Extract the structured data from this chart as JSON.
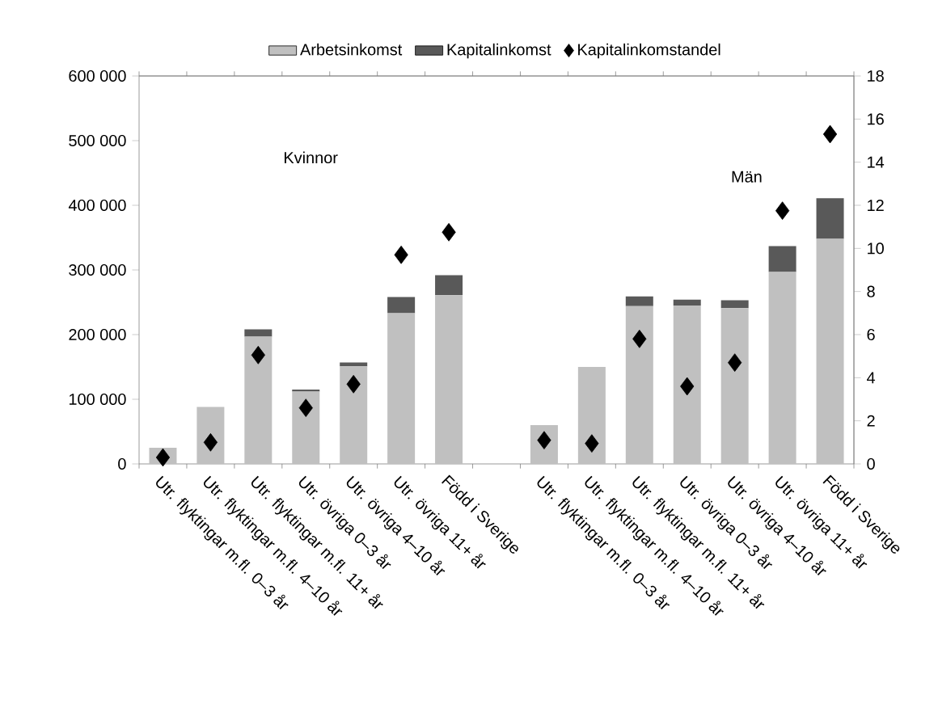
{
  "chart_data": {
    "type": "bar",
    "stacked": true,
    "categories": [
      "Utr. flyktingar m.fl. 0–3 år",
      "Utr. flyktingar m.fl. 4–10 år",
      "Utr. flyktingar m.fl. 11+ år",
      "Utr. övriga 0–3 år",
      "Utr. övriga 4–10 år",
      "Utr. övriga 11+ år",
      "Född i Sverige",
      null,
      "Utr. flyktingar m.fl. 0–3 år",
      "Utr. flyktingar m.fl. 4–10 år",
      "Utr. flyktingar m.fl. 11+ år",
      "Utr. övriga 0–3 år",
      "Utr. övriga 4–10 år",
      "Utr. övriga 11+ år",
      "Född i Sverige"
    ],
    "series": [
      {
        "name": "Arbetsinkomst",
        "color": "#c0c0c0",
        "values": [
          25000,
          88000,
          197000,
          112000,
          151000,
          233000,
          261000,
          null,
          60000,
          150000,
          244000,
          245000,
          241000,
          297000,
          348000
        ]
      },
      {
        "name": "Kapitalinkomst",
        "color": "#595959",
        "values": [
          0,
          0,
          11000,
          3000,
          6000,
          25000,
          31000,
          null,
          0,
          0,
          15000,
          9000,
          12000,
          40000,
          63000
        ]
      },
      {
        "name": "Kapitalinkomstandel",
        "type": "scatter",
        "axis": "y2",
        "marker": "diamond",
        "color": "#000000",
        "values": [
          0.3,
          1.0,
          5.05,
          2.6,
          3.7,
          9.7,
          10.75,
          null,
          1.1,
          0.95,
          5.8,
          3.6,
          4.7,
          11.75,
          15.3
        ]
      }
    ],
    "ylim": [
      0,
      600000
    ],
    "yticks": [
      {
        "value": 0,
        "label": "0"
      },
      {
        "value": 100000,
        "label": "100 000"
      },
      {
        "value": 200000,
        "label": "200 000"
      },
      {
        "value": 300000,
        "label": "300 000"
      },
      {
        "value": 400000,
        "label": "400 000"
      },
      {
        "value": 500000,
        "label": "500 000"
      },
      {
        "value": 600000,
        "label": "600 000"
      }
    ],
    "y2lim": [
      0,
      18
    ],
    "y2ticks": [
      0,
      2,
      4,
      6,
      8,
      10,
      12,
      14,
      16,
      18
    ],
    "annotations": [
      "Kvinnor",
      "Män"
    ],
    "legend": "top",
    "grid": false
  }
}
